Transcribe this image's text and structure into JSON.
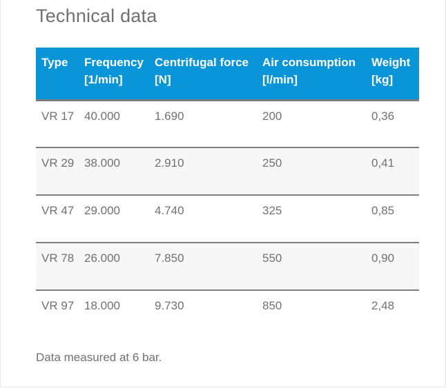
{
  "title": "Technical data",
  "table": {
    "headers": [
      {
        "name": "Type",
        "unit": ""
      },
      {
        "name": "Frequency",
        "unit": "[1/min]"
      },
      {
        "name": "Centrifugal force",
        "unit": "[N]"
      },
      {
        "name": "Air consumption",
        "unit": "[l/min]"
      },
      {
        "name": "Weight",
        "unit": "[kg]"
      }
    ],
    "rows": [
      [
        "VR 17",
        "40.000",
        "1.690",
        "200",
        "0,36"
      ],
      [
        "VR 29",
        "38.000",
        "2.910",
        "250",
        "0,41"
      ],
      [
        "VR 47",
        "29.000",
        "4.740",
        "325",
        "0,85"
      ],
      [
        "VR 78",
        "26.000",
        "7.850",
        "550",
        "0,90"
      ],
      [
        "VR 97",
        "18.000",
        "9.730",
        "850",
        "2,48"
      ]
    ]
  },
  "note": "Data measured at 6 bar.",
  "colors": {
    "header_bg": "#0a95d8",
    "header_text": "#ffffff",
    "body_text": "#707070",
    "row_divider": "#7d7d7d",
    "alt_row_bg": "#f7f7f7"
  }
}
